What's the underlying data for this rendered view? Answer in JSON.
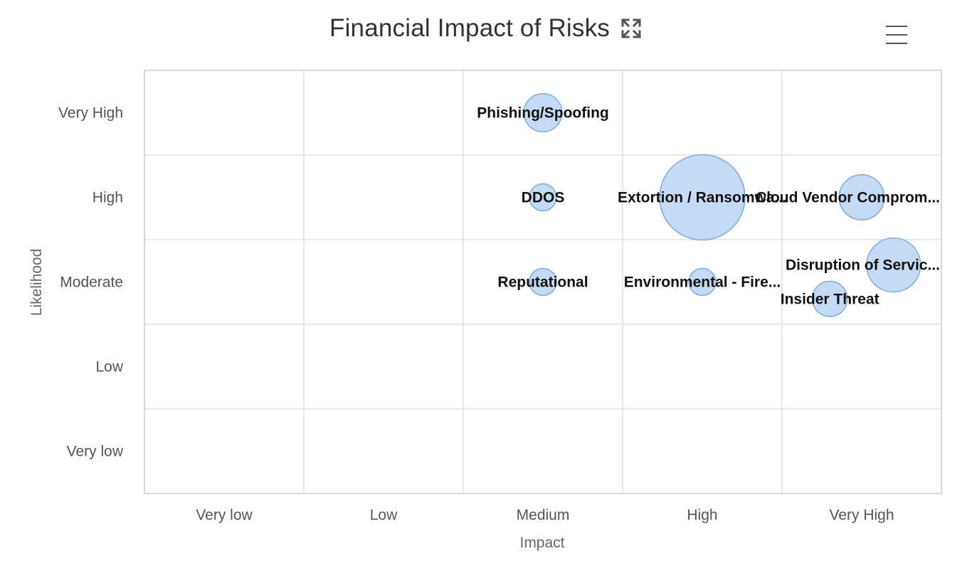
{
  "title": "Financial Impact of Risks",
  "icons": {
    "expand": "expand-icon",
    "menu": "hamburger-menu-icon"
  },
  "colors": {
    "bubble_fill": "#c5dbf3",
    "bubble_stroke": "#7fa9df",
    "grid": "#e0e0e0",
    "plot_border": "#cccccc"
  },
  "chart_data": {
    "type": "bubble",
    "title": "Financial Impact of Risks",
    "xlabel": "Impact",
    "ylabel": "Likelihood",
    "x_categories": [
      "Very low",
      "Low",
      "Medium",
      "High",
      "Very High"
    ],
    "y_categories": [
      "Very low",
      "Low",
      "Moderate",
      "High",
      "Very High"
    ],
    "grid": true,
    "points": [
      {
        "label": "Phishing/Spoofing",
        "x": "Medium",
        "y": "Very High",
        "x_offset": 0,
        "y_offset": 0,
        "size": 0.2
      },
      {
        "label": "DDOS",
        "x": "Medium",
        "y": "High",
        "x_offset": 0,
        "y_offset": 0,
        "size": 0.1
      },
      {
        "label": "Reputational",
        "x": "Medium",
        "y": "Moderate",
        "x_offset": 0,
        "y_offset": 0,
        "size": 0.1
      },
      {
        "label": "Extortion / Ransomwa...",
        "x": "High",
        "y": "High",
        "x_offset": 0,
        "y_offset": 0,
        "size": 1.0
      },
      {
        "label": "Environmental - Fire...",
        "x": "High",
        "y": "Moderate",
        "x_offset": 0,
        "y_offset": 0,
        "size": 0.1
      },
      {
        "label": "Cloud Vendor Comprom...",
        "x": "Very High",
        "y": "High",
        "x_offset": 0,
        "y_offset": 0,
        "size": 0.28
      },
      {
        "label": "Disruption of Servic...",
        "x": "Very High",
        "y": "Moderate",
        "x_offset": 0.2,
        "y_offset": 0.2,
        "size": 0.4
      },
      {
        "label": "Insider Threat",
        "x": "Very High",
        "y": "Moderate",
        "x_offset": -0.2,
        "y_offset": -0.2,
        "size": 0.17
      }
    ]
  }
}
